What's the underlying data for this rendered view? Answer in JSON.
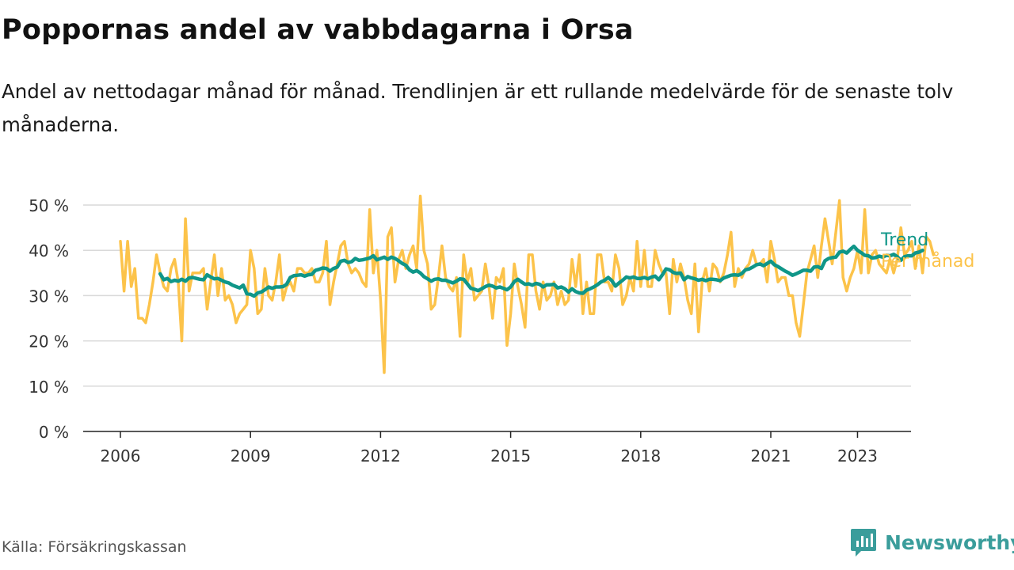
{
  "title": "Poppornas andel av vabbdagarna i Orsa",
  "subtitle": "Andel av nettodagar månad för månad. Trendlinjen är ett rullande medelvärde för de senaste tolv månaderna.",
  "source": "Källa: Försäkringskassan",
  "brand": {
    "name": "Newsworthy",
    "icon": "newsworthy-logo-icon"
  },
  "colors": {
    "trend": "#0f9688",
    "monthly": "#fcc34a",
    "grid": "#d9d9d9",
    "axis": "#222222"
  },
  "chart_data": {
    "type": "line",
    "x_axis": {
      "ticks": [
        "2006",
        "2009",
        "2012",
        "2015",
        "2018",
        "2021",
        "2023"
      ],
      "range": [
        "2006-01",
        "2024-12"
      ]
    },
    "y_axis": {
      "ticks": [
        "0 %",
        "10 %",
        "20 %",
        "30 %",
        "40 %",
        "50 %"
      ],
      "ylim": [
        0,
        50
      ],
      "unit": "%"
    },
    "grid": true,
    "legend": "right, at end of lines",
    "series": [
      {
        "name": "Per månad",
        "color": "#fcc34a",
        "start": "2006-01",
        "values": [
          42,
          31,
          42,
          32,
          36,
          25,
          25,
          24,
          28,
          33,
          39,
          35,
          32,
          31,
          36,
          38,
          33,
          20,
          47,
          31,
          35,
          35,
          35,
          36,
          27,
          33,
          39,
          30,
          36,
          29,
          30,
          28,
          24,
          26,
          27,
          28,
          40,
          36,
          26,
          27,
          36,
          30,
          29,
          33,
          39,
          29,
          32,
          33,
          31,
          36,
          36,
          35,
          35,
          36,
          33,
          33,
          35,
          42,
          28,
          33,
          37,
          41,
          42,
          37,
          35,
          36,
          35,
          33,
          32,
          49,
          35,
          40,
          29,
          13,
          43,
          45,
          33,
          38,
          40,
          36,
          39,
          41,
          36,
          52,
          40,
          37,
          27,
          28,
          34,
          41,
          34,
          32,
          31,
          34,
          21,
          39,
          33,
          36,
          29,
          30,
          31,
          37,
          32,
          25,
          34,
          33,
          36,
          19,
          26,
          37,
          32,
          28,
          23,
          39,
          39,
          31,
          27,
          33,
          29,
          30,
          33,
          28,
          31,
          28,
          29,
          38,
          32,
          39,
          26,
          33,
          26,
          26,
          39,
          39,
          33,
          33,
          31,
          39,
          36,
          28,
          30,
          34,
          31,
          42,
          32,
          40,
          32,
          32,
          40,
          37,
          35,
          35,
          26,
          38,
          33,
          37,
          34,
          29,
          26,
          37,
          22,
          33,
          36,
          31,
          37,
          36,
          33,
          35,
          39,
          44,
          32,
          36,
          34,
          36,
          37,
          40,
          37,
          37,
          38,
          33,
          42,
          38,
          33,
          34,
          34,
          30,
          30,
          24,
          21,
          28,
          35,
          38,
          41,
          34,
          41,
          47,
          42,
          37,
          44,
          51,
          34,
          31,
          34,
          36,
          40,
          35,
          49,
          35,
          39,
          40,
          37,
          36,
          35,
          38,
          35,
          38,
          45,
          39,
          40,
          42,
          36,
          41,
          35,
          43,
          42,
          39
        ]
      },
      {
        "name": "Trend",
        "color": "#0f9688",
        "start": "2006-12",
        "values": [
          34.8,
          33.5,
          33.8,
          33.1,
          33.4,
          33.2,
          33.6,
          33.2,
          33.9,
          34.0,
          33.8,
          33.6,
          33.5,
          34.6,
          34.1,
          33.7,
          33.8,
          33.4,
          33.0,
          32.8,
          32.3,
          32.0,
          31.7,
          32.3,
          30.4,
          30.3,
          29.9,
          30.6,
          30.8,
          31.3,
          31.9,
          31.6,
          31.9,
          31.9,
          32.0,
          32.5,
          34.0,
          34.4,
          34.5,
          34.6,
          34.3,
          34.6,
          34.7,
          35.6,
          35.8,
          36.1,
          36.0,
          35.4,
          36.0,
          36.3,
          37.6,
          37.8,
          37.3,
          37.5,
          38.2,
          37.8,
          37.9,
          38.1,
          38.3,
          38.8,
          37.9,
          38.2,
          38.5,
          38.0,
          38.5,
          38.2,
          37.7,
          37.1,
          36.7,
          35.7,
          35.2,
          35.5,
          35.0,
          34.2,
          33.7,
          33.2,
          33.6,
          33.7,
          33.4,
          33.4,
          33.1,
          32.8,
          33.2,
          33.7,
          33.6,
          32.6,
          31.6,
          31.4,
          31.1,
          31.5,
          32.0,
          32.3,
          32.1,
          31.7,
          31.9,
          31.6,
          31.3,
          31.9,
          33.1,
          33.6,
          33.0,
          32.5,
          32.6,
          32.3,
          32.7,
          32.5,
          31.9,
          32.4,
          32.4,
          32.5,
          31.7,
          31.9,
          31.5,
          30.8,
          31.5,
          30.9,
          30.6,
          30.5,
          31.2,
          31.5,
          31.9,
          32.4,
          33.0,
          33.4,
          34.0,
          33.3,
          32.1,
          32.8,
          33.4,
          34.1,
          33.9,
          34.1,
          33.8,
          33.8,
          34.0,
          33.7,
          34.1,
          34.3,
          33.5,
          34.6,
          35.9,
          35.7,
          35.1,
          34.9,
          35.0,
          33.5,
          34.2,
          33.9,
          33.7,
          33.4,
          33.6,
          33.3,
          33.6,
          33.6,
          33.5,
          33.3,
          33.9,
          34.2,
          34.5,
          34.6,
          34.5,
          34.9,
          35.7,
          35.9,
          36.3,
          36.8,
          37.0,
          36.6,
          37.1,
          37.6,
          36.8,
          36.4,
          35.9,
          35.4,
          35.0,
          34.5,
          34.8,
          35.2,
          35.6,
          35.6,
          35.4,
          36.3,
          36.4,
          36.0,
          37.7,
          38.2,
          38.4,
          38.5,
          39.6,
          39.8,
          39.4,
          40.2,
          40.9,
          40.0,
          39.5,
          38.9,
          38.8,
          38.3,
          38.4,
          38.7,
          38.5,
          38.9,
          38.8,
          39.1,
          38.6,
          37.8,
          38.6,
          38.8,
          38.8,
          39.4,
          39.6,
          40.0
        ]
      }
    ]
  }
}
